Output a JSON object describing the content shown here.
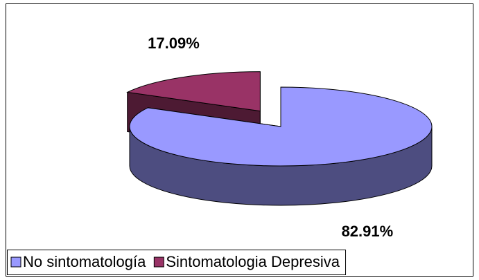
{
  "chart_data": {
    "type": "pie",
    "categories": [
      "No sintomatología",
      "Sintomatologia Depresiva"
    ],
    "values": [
      82.91,
      17.09
    ],
    "value_labels": [
      "82.91%",
      "17.09%"
    ],
    "colors": [
      "#9999ff",
      "#993366"
    ],
    "legend": "bottom"
  }
}
